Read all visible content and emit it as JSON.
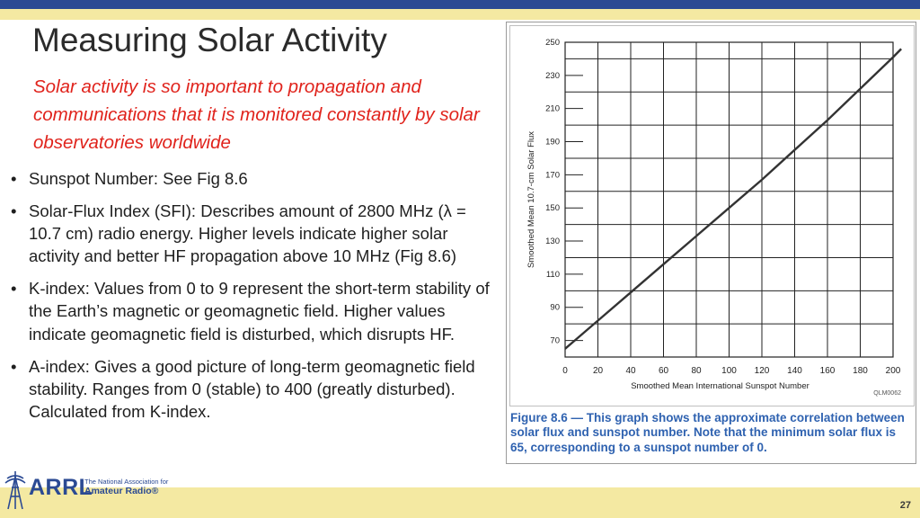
{
  "slide": {
    "title": "Measuring Solar Activity",
    "subtitle": "Solar activity is so important to propagation and communications that it is monitored constantly by solar observatories worldwide",
    "bullets": [
      {
        "marker": "•",
        "text": "Sunspot Number: See Fig 8.6"
      },
      {
        "marker": "•",
        "text": "Solar-Flux Index (SFI): Describes amount of 2800 MHz (λ = 10.7 cm) radio energy. Higher levels indicate higher solar activity and better HF propagation above 10 MHz (Fig 8.6)"
      },
      {
        "marker": "•",
        "text": "K-index: Values from 0 to 9 represent the short-term stability of the Earth’s magnetic or geomagnetic field. Higher values indicate geomagnetic field is disturbed, which disrupts HF."
      },
      {
        "marker": "•",
        "text": "A-index: Gives a good picture of long-term geomagnetic field stability. Ranges from 0 (stable) to 400 (greatly disturbed).  Calculated from K-index."
      }
    ],
    "page_number": "27"
  },
  "figure": {
    "caption": "Figure 8.6 — This graph shows the approximate correlation between solar flux and sunspot number. Note that the minimum solar flux is 65, corresponding to a sunspot number of 0.",
    "code": "QLM0062"
  },
  "logo": {
    "name": "ARRL",
    "tagline1": "The National Association for",
    "tagline2": "Amateur Radio®",
    "color": "#2b4a93"
  },
  "colors": {
    "title_bar": "#2b4a93",
    "accent_band": "#f4e9a2",
    "subtitle": "#e0231c",
    "caption": "#2f62b0"
  },
  "chart_data": {
    "type": "line",
    "xlabel": "Smoothed Mean International Sunspot Number",
    "ylabel": "Smoothed Mean 10.7-cm Solar Flux",
    "xlim": [
      0,
      200
    ],
    "ylim": [
      60,
      250
    ],
    "x_ticks": [
      0,
      20,
      40,
      60,
      80,
      100,
      120,
      140,
      160,
      180,
      200
    ],
    "y_ticks": [
      70,
      90,
      110,
      130,
      150,
      170,
      190,
      210,
      230,
      250
    ],
    "grid": true,
    "series": [
      {
        "x": [
          0,
          20,
          40,
          60,
          80,
          100,
          120,
          140,
          160,
          180,
          200,
          205
        ],
        "y": [
          65,
          82,
          99,
          116,
          133,
          150,
          167,
          185,
          203,
          222,
          241,
          246
        ]
      }
    ]
  }
}
